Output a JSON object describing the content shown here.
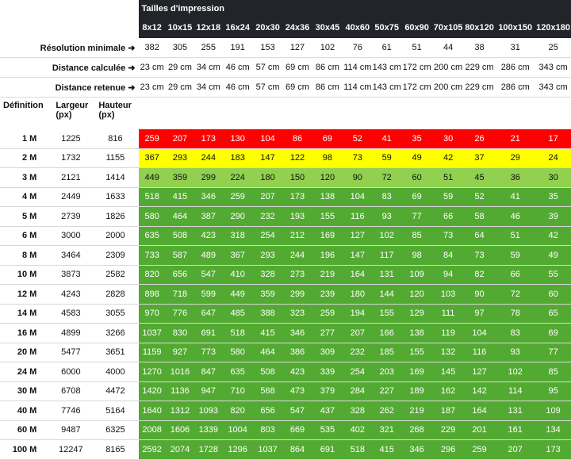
{
  "title": "Tailles d'impression",
  "sizes": [
    "8x12",
    "10x15",
    "12x18",
    "16x24",
    "20x30",
    "24x36",
    "30x45",
    "40x60",
    "50x75",
    "60x90",
    "70x105",
    "80x120",
    "100x150",
    "120x180"
  ],
  "info_rows": [
    {
      "label": "Résolution minimale ➜",
      "values": [
        "382",
        "305",
        "255",
        "191",
        "153",
        "127",
        "102",
        "76",
        "61",
        "51",
        "44",
        "38",
        "31",
        "25"
      ]
    },
    {
      "label": "Distance calculée ➜",
      "values": [
        "23 cm",
        "29 cm",
        "34 cm",
        "46 cm",
        "57 cm",
        "69 cm",
        "86 cm",
        "114 cm",
        "143 cm",
        "172 cm",
        "200 cm",
        "229 cm",
        "286 cm",
        "343 cm"
      ]
    },
    {
      "label": "Distance retenue ➜",
      "values": [
        "23 cm",
        "29 cm",
        "34 cm",
        "46 cm",
        "57 cm",
        "69 cm",
        "86 cm",
        "114 cm",
        "143 cm",
        "172 cm",
        "200 cm",
        "229 cm",
        "286 cm",
        "343 cm"
      ]
    }
  ],
  "col_headers": {
    "definition": "Définition",
    "width": "Largeur\n(px)",
    "height": "Hauteur\n(px)"
  },
  "colors": {
    "red": "#ff0000",
    "yellow": "#ffff00",
    "light_green": "#92d050",
    "green": "#53aa32",
    "header_bg": "#212529"
  },
  "rows": [
    {
      "def": "1 M",
      "w": "1225",
      "h": "816",
      "band": "red",
      "values": [
        "259",
        "207",
        "173",
        "130",
        "104",
        "86",
        "69",
        "52",
        "41",
        "35",
        "30",
        "26",
        "21",
        "17"
      ]
    },
    {
      "def": "2 M",
      "w": "1732",
      "h": "1155",
      "band": "yellow",
      "values": [
        "367",
        "293",
        "244",
        "183",
        "147",
        "122",
        "98",
        "73",
        "59",
        "49",
        "42",
        "37",
        "29",
        "24"
      ]
    },
    {
      "def": "3 M",
      "w": "2121",
      "h": "1414",
      "band": "light",
      "values": [
        "449",
        "359",
        "299",
        "224",
        "180",
        "150",
        "120",
        "90",
        "72",
        "60",
        "51",
        "45",
        "36",
        "30"
      ]
    },
    {
      "def": "4 M",
      "w": "2449",
      "h": "1633",
      "band": "green",
      "values": [
        "518",
        "415",
        "346",
        "259",
        "207",
        "173",
        "138",
        "104",
        "83",
        "69",
        "59",
        "52",
        "41",
        "35"
      ]
    },
    {
      "def": "5 M",
      "w": "2739",
      "h": "1826",
      "band": "green",
      "values": [
        "580",
        "464",
        "387",
        "290",
        "232",
        "193",
        "155",
        "116",
        "93",
        "77",
        "66",
        "58",
        "46",
        "39"
      ]
    },
    {
      "def": "6 M",
      "w": "3000",
      "h": "2000",
      "band": "green",
      "values": [
        "635",
        "508",
        "423",
        "318",
        "254",
        "212",
        "169",
        "127",
        "102",
        "85",
        "73",
        "64",
        "51",
        "42"
      ]
    },
    {
      "def": "8 M",
      "w": "3464",
      "h": "2309",
      "band": "green",
      "values": [
        "733",
        "587",
        "489",
        "367",
        "293",
        "244",
        "196",
        "147",
        "117",
        "98",
        "84",
        "73",
        "59",
        "49"
      ]
    },
    {
      "def": "10 M",
      "w": "3873",
      "h": "2582",
      "band": "green",
      "values": [
        "820",
        "656",
        "547",
        "410",
        "328",
        "273",
        "219",
        "164",
        "131",
        "109",
        "94",
        "82",
        "66",
        "55"
      ]
    },
    {
      "def": "12 M",
      "w": "4243",
      "h": "2828",
      "band": "green",
      "values": [
        "898",
        "718",
        "599",
        "449",
        "359",
        "299",
        "239",
        "180",
        "144",
        "120",
        "103",
        "90",
        "72",
        "60"
      ]
    },
    {
      "def": "14 M",
      "w": "4583",
      "h": "3055",
      "band": "green",
      "values": [
        "970",
        "776",
        "647",
        "485",
        "388",
        "323",
        "259",
        "194",
        "155",
        "129",
        "111",
        "97",
        "78",
        "65"
      ]
    },
    {
      "def": "16 M",
      "w": "4899",
      "h": "3266",
      "band": "green",
      "values": [
        "1037",
        "830",
        "691",
        "518",
        "415",
        "346",
        "277",
        "207",
        "166",
        "138",
        "119",
        "104",
        "83",
        "69"
      ]
    },
    {
      "def": "20 M",
      "w": "5477",
      "h": "3651",
      "band": "green",
      "values": [
        "1159",
        "927",
        "773",
        "580",
        "464",
        "386",
        "309",
        "232",
        "185",
        "155",
        "132",
        "116",
        "93",
        "77"
      ]
    },
    {
      "def": "24 M",
      "w": "6000",
      "h": "4000",
      "band": "green",
      "values": [
        "1270",
        "1016",
        "847",
        "635",
        "508",
        "423",
        "339",
        "254",
        "203",
        "169",
        "145",
        "127",
        "102",
        "85"
      ]
    },
    {
      "def": "30 M",
      "w": "6708",
      "h": "4472",
      "band": "green",
      "values": [
        "1420",
        "1136",
        "947",
        "710",
        "568",
        "473",
        "379",
        "284",
        "227",
        "189",
        "162",
        "142",
        "114",
        "95"
      ]
    },
    {
      "def": "40 M",
      "w": "7746",
      "h": "5164",
      "band": "green",
      "values": [
        "1640",
        "1312",
        "1093",
        "820",
        "656",
        "547",
        "437",
        "328",
        "262",
        "219",
        "187",
        "164",
        "131",
        "109"
      ]
    },
    {
      "def": "60 M",
      "w": "9487",
      "h": "6325",
      "band": "green",
      "values": [
        "2008",
        "1606",
        "1339",
        "1004",
        "803",
        "669",
        "535",
        "402",
        "321",
        "268",
        "229",
        "201",
        "161",
        "134"
      ]
    },
    {
      "def": "100 M",
      "w": "12247",
      "h": "8165",
      "band": "green",
      "values": [
        "2592",
        "2074",
        "1728",
        "1296",
        "1037",
        "864",
        "691",
        "518",
        "415",
        "346",
        "296",
        "259",
        "207",
        "173"
      ]
    }
  ]
}
